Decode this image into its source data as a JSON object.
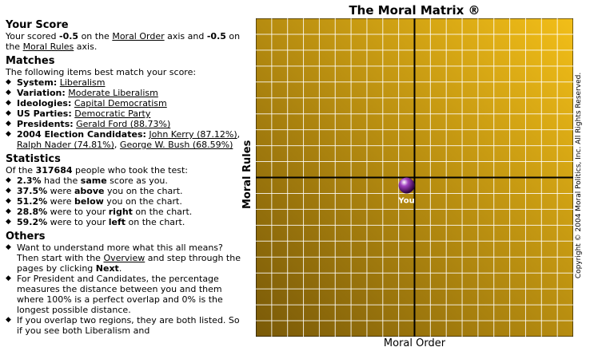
{
  "score": {
    "heading": "Your Score",
    "intro": "Your scored ",
    "order_value": "-0.5",
    "mid1": " on the ",
    "order_link": "Moral Order",
    "mid2": " axis and ",
    "rules_value": "-0.5",
    "mid3": " on the ",
    "rules_link": "Moral Rules",
    "end": " axis."
  },
  "matches": {
    "heading": "Matches",
    "intro": "The following items best match your score:",
    "items": [
      {
        "label": "System:",
        "value": "Liberalism"
      },
      {
        "label": "Variation:",
        "value": "Moderate Liberalism"
      },
      {
        "label": "Ideologies:",
        "value": "Capital Democratism"
      },
      {
        "label": "US Parties:",
        "value": "Democratic Party"
      },
      {
        "label": "Presidents:",
        "value": "Gerald Ford (88.73%)"
      }
    ],
    "election": {
      "label": "2004 Election Candidates:",
      "c1": "John Kerry (87.12%)",
      "c2": "Ralph Nader (74.81%)",
      "c3": "George W. Bush (68.59%)"
    }
  },
  "stats": {
    "heading": "Statistics",
    "intro_a": "Of the ",
    "count": "317684",
    "intro_b": " people who took the test:",
    "items": [
      {
        "pct": "2.3%",
        "pre": " had the ",
        "key": "same",
        "post": " score as you."
      },
      {
        "pct": "37.5%",
        "pre": " were ",
        "key": "above",
        "post": " you on the chart."
      },
      {
        "pct": "51.2%",
        "pre": " were ",
        "key": "below",
        "post": " you on the chart."
      },
      {
        "pct": "28.8%",
        "pre": " were to your ",
        "key": "right",
        "post": " on the chart."
      },
      {
        "pct": "59.2%",
        "pre": " were to your ",
        "key": "left",
        "post": " on the chart."
      }
    ]
  },
  "others": {
    "heading": "Others",
    "i1_a": "Want to understand more what this all means? Then start with the ",
    "i1_link": "Overview",
    "i1_b": " and step through the pages by clicking ",
    "i1_bold": "Next",
    "i1_c": ".",
    "i2": "For President and Candidates, the percentage measures the distance between you and them where 100% is a perfect overlap and 0% is the longest possible distance.",
    "i3": "If you overlap two regions, they are both listed. So if you see both Liberalism and"
  },
  "chart": {
    "title": "The Moral Matrix ®",
    "xlabel": "Moral Order",
    "ylabel": "Moral Rules",
    "copyright": "Copyright © 2004 Moral Politics, Inc. All Rights Reserved.",
    "marker_label": "You",
    "marker_color": "#a040c0",
    "grad_start": "#f2be18",
    "grad_end": "#7a5a08"
  },
  "chart_data": {
    "type": "scatter",
    "title": "The Moral Matrix ®",
    "xlabel": "Moral Order",
    "ylabel": "Moral Rules",
    "xlim": [
      -10,
      10
    ],
    "ylim": [
      -10,
      10
    ],
    "grid": true,
    "points": [
      {
        "x": -0.5,
        "y": -0.5,
        "label": "You"
      }
    ]
  }
}
